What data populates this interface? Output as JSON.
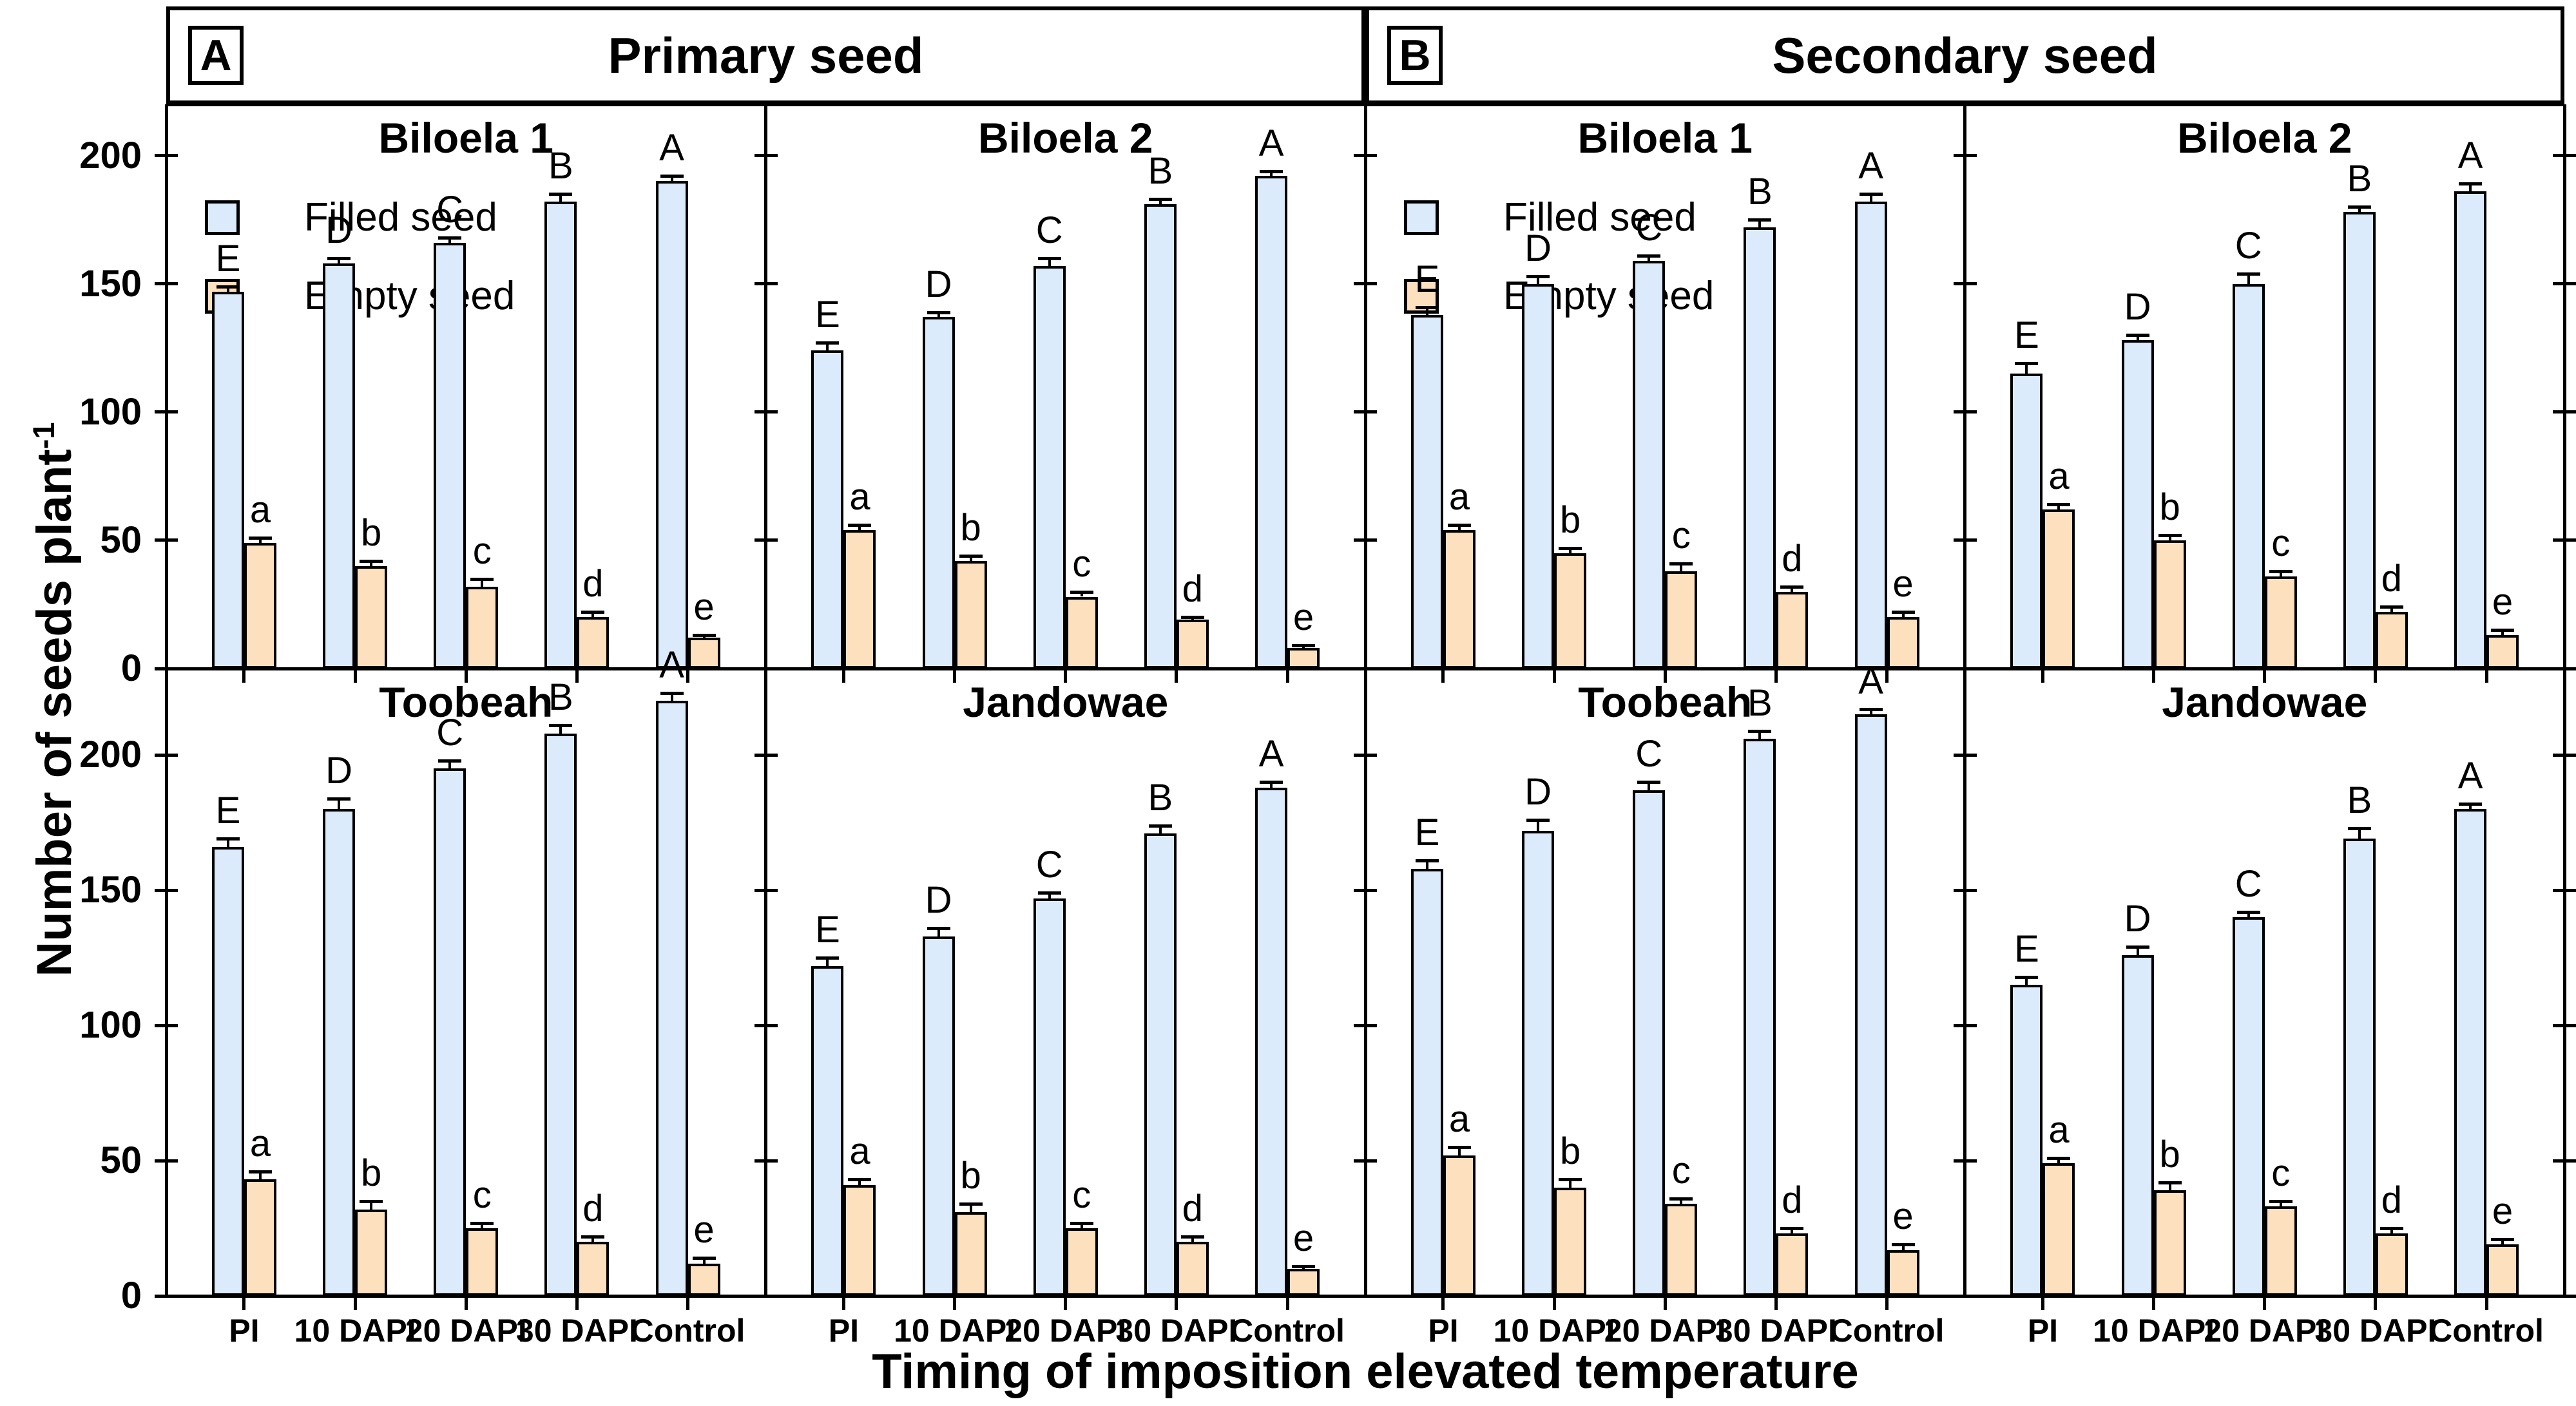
{
  "chart_data": {
    "type": "bar",
    "title": "",
    "xlabel": "Timing of imposition elevated temperature",
    "ylabel_main": "Number of seeds plant",
    "ylabel_sup": "-1",
    "yticks": [
      0,
      50,
      100,
      150,
      200
    ],
    "categories": [
      "PI",
      "10 DAPI",
      "20 DAPI",
      "30 DAPI",
      "Control"
    ],
    "legend": {
      "items": [
        {
          "label": "Filled seed",
          "color": "#dcebfb"
        },
        {
          "label": "Empty seed",
          "color": "#fde0bd"
        }
      ]
    },
    "letters_filled": [
      "E",
      "D",
      "C",
      "B",
      "A"
    ],
    "letters_empty": [
      "a",
      "b",
      "c",
      "d",
      "e"
    ],
    "sections": [
      {
        "letter": "A",
        "title": "Primary seed"
      },
      {
        "letter": "B",
        "title": "Secondary seed"
      }
    ],
    "rows": [
      {
        "ylim": 220,
        "panels": [
          {
            "section": "A",
            "title": "Biloela 1",
            "legend": true,
            "filled": [
              147,
              158,
              166,
              182,
              190
            ],
            "filled_err": [
              2,
              2,
              2,
              3,
              2
            ],
            "empty": [
              49,
              40,
              32,
              20,
              12
            ],
            "empty_err": [
              2,
              2,
              3,
              2,
              1
            ]
          },
          {
            "section": "A",
            "title": "Biloela 2",
            "legend": false,
            "filled": [
              124,
              137,
              157,
              181,
              192
            ],
            "filled_err": [
              3,
              2,
              3,
              2,
              2
            ],
            "empty": [
              54,
              42,
              28,
              19,
              8
            ],
            "empty_err": [
              2,
              2,
              2,
              1,
              1
            ]
          },
          {
            "section": "B",
            "title": "Biloela 1",
            "legend": true,
            "filled": [
              138,
              150,
              159,
              172,
              182
            ],
            "filled_err": [
              3,
              3,
              2,
              3,
              3
            ],
            "empty": [
              54,
              45,
              38,
              30,
              20
            ],
            "empty_err": [
              2,
              2,
              3,
              2,
              2
            ]
          },
          {
            "section": "B",
            "title": "Biloela 2",
            "legend": false,
            "filled": [
              115,
              128,
              150,
              178,
              186
            ],
            "filled_err": [
              4,
              2,
              4,
              2,
              3
            ],
            "empty": [
              62,
              50,
              36,
              22,
              13
            ],
            "empty_err": [
              2,
              2,
              2,
              2,
              2
            ]
          }
        ]
      },
      {
        "ylim": 232,
        "panels": [
          {
            "section": "A",
            "title": "Toobeah",
            "legend": false,
            "filled": [
              166,
              180,
              195,
              208,
              220
            ],
            "filled_err": [
              3,
              4,
              3,
              3,
              3
            ],
            "empty": [
              43,
              32,
              25,
              20,
              12
            ],
            "empty_err": [
              3,
              3,
              2,
              2,
              2
            ]
          },
          {
            "section": "A",
            "title": "Jandowae",
            "legend": false,
            "filled": [
              122,
              133,
              147,
              171,
              188
            ],
            "filled_err": [
              3,
              3,
              2,
              3,
              2
            ],
            "empty": [
              41,
              31,
              25,
              20,
              10
            ],
            "empty_err": [
              2,
              3,
              2,
              2,
              1
            ]
          },
          {
            "section": "B",
            "title": "Toobeah",
            "legend": false,
            "filled": [
              158,
              172,
              187,
              206,
              215
            ],
            "filled_err": [
              3,
              4,
              3,
              3,
              2
            ],
            "empty": [
              52,
              40,
              34,
              23,
              17
            ],
            "empty_err": [
              3,
              3,
              2,
              2,
              2
            ]
          },
          {
            "section": "B",
            "title": "Jandowae",
            "legend": false,
            "filled": [
              115,
              126,
              140,
              169,
              180
            ],
            "filled_err": [
              3,
              3,
              2,
              4,
              2
            ],
            "empty": [
              49,
              39,
              33,
              23,
              19
            ],
            "empty_err": [
              2,
              3,
              2,
              2,
              2
            ]
          }
        ]
      }
    ]
  }
}
